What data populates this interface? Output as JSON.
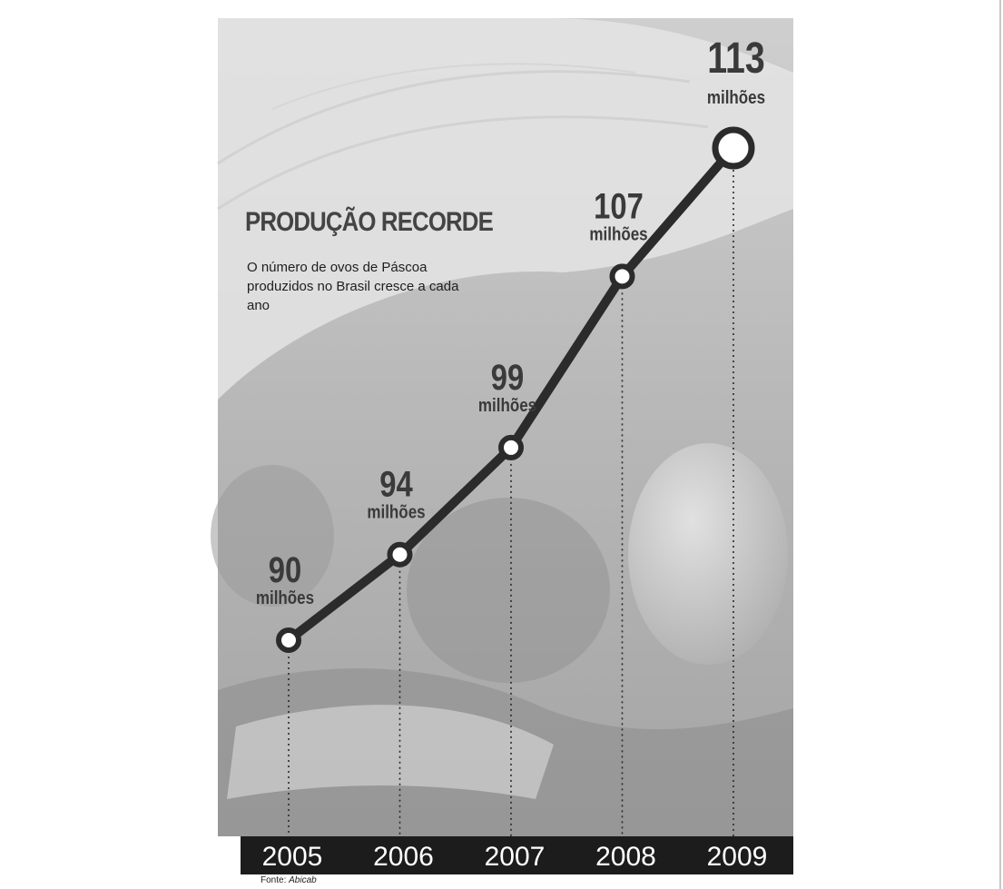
{
  "chart_data": {
    "type": "line",
    "title": "PRODUÇÃO RECORDE",
    "subtitle": "O número de ovos de Páscoa produzidos no Brasil cresce a cada ano",
    "source_label": "Fonte:",
    "source_name": "Abicab",
    "categories": [
      "2005",
      "2006",
      "2007",
      "2008",
      "2009"
    ],
    "series": [
      {
        "values": [
          90,
          94,
          99,
          107,
          113
        ]
      }
    ],
    "value_labels": [
      "90",
      "94",
      "99",
      "107",
      "113"
    ],
    "unit_label": "milhões",
    "highlight_last": true,
    "colors": {
      "line": "#2b2b2b",
      "axis_bar": "#1c1c1c",
      "axis_text": "#ffffff",
      "label": "#3a3a3a"
    }
  }
}
